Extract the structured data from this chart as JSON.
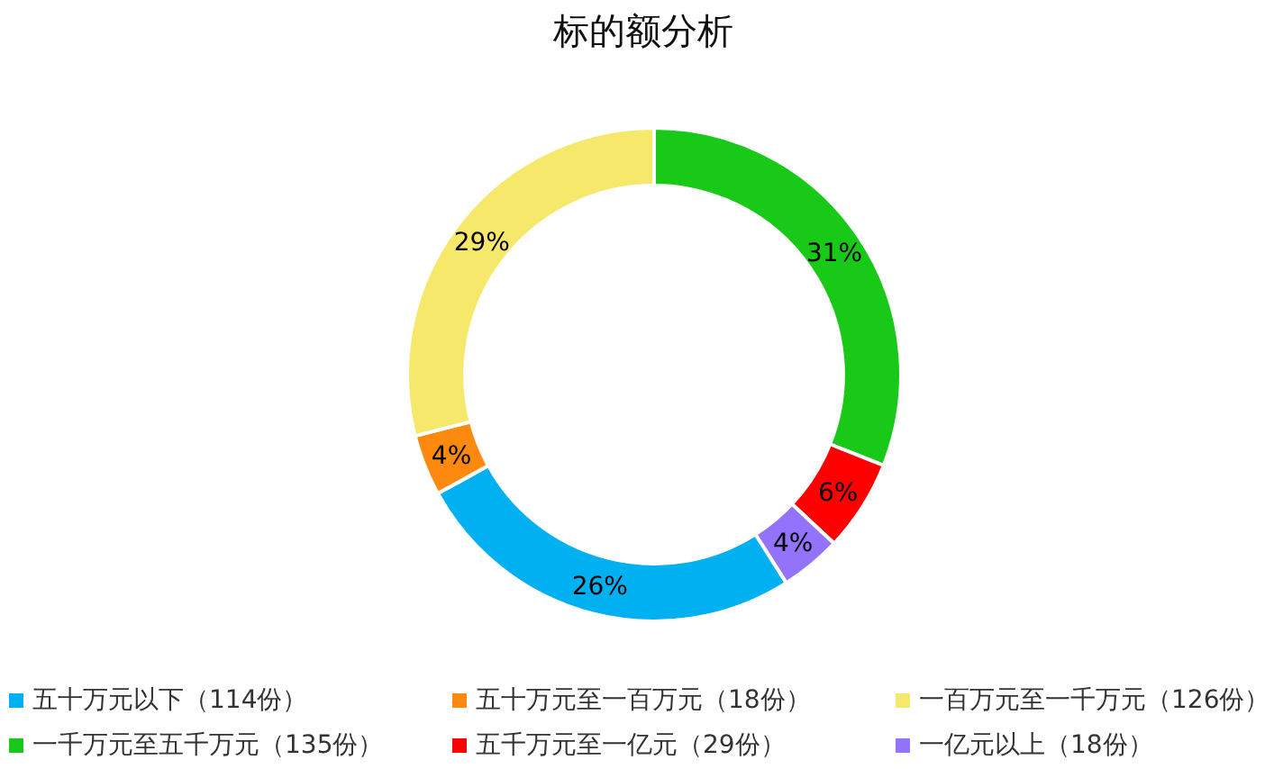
{
  "chart_data": {
    "type": "donut",
    "title": "标的额分析",
    "categories": [
      "五十万元以下（114份）",
      "五十万元至一百万元（18份）",
      "一百万元至一千万元（126份）",
      "一千万元至五千万元（135份）",
      "五千万元至一亿元（29份）",
      "一亿元以上（18份）"
    ],
    "values": [
      26,
      4,
      29,
      31,
      6,
      4
    ],
    "colors": [
      "#00b0f0",
      "#fd8a0f",
      "#f6e86a",
      "#18c918",
      "#ff0000",
      "#9373fb"
    ],
    "value_labels": [
      "26%",
      "4%",
      "29%",
      "31%",
      "6%",
      "4%"
    ],
    "legend": "bottom"
  }
}
